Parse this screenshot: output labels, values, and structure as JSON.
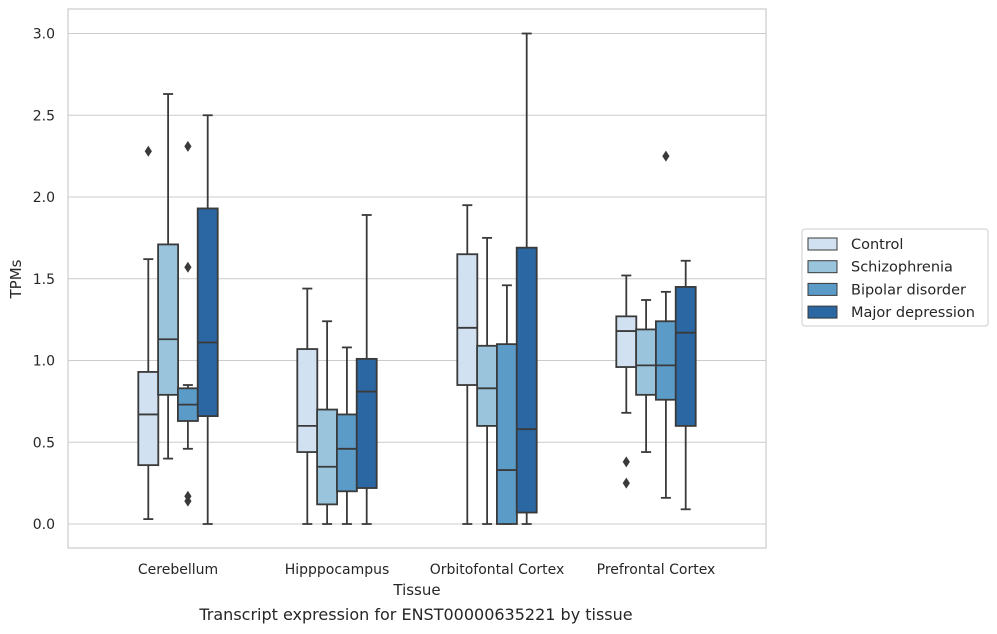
{
  "caption": "Transcript expression for ENST00000635221 by tissue",
  "chart_data": {
    "type": "box",
    "xlabel": "Tissue",
    "ylabel": "TPMs",
    "ylim": [
      -0.15,
      3.15
    ],
    "yticks": [
      0.0,
      0.5,
      1.0,
      1.5,
      2.0,
      2.5,
      3.0
    ],
    "ytick_labels": [
      "0.0",
      "0.5",
      "1.0",
      "1.5",
      "2.0",
      "2.5",
      "3.0"
    ],
    "grid": "horizontal",
    "legend_position": "right",
    "categories": [
      "Cerebellum",
      "Hipppocampus",
      "Orbitofontal Cortex",
      "Prefrontal Cortex"
    ],
    "series": [
      {
        "name": "Control",
        "color": "#d1e1f1",
        "boxes": [
          {
            "whislo": 0.03,
            "q1": 0.36,
            "med": 0.67,
            "q3": 0.93,
            "whishi": 1.62,
            "fliers": [
              2.28
            ]
          },
          {
            "whislo": 0.0,
            "q1": 0.44,
            "med": 0.6,
            "q3": 1.07,
            "whishi": 1.44,
            "fliers": []
          },
          {
            "whislo": 0.0,
            "q1": 0.85,
            "med": 1.2,
            "q3": 1.65,
            "whishi": 1.95,
            "fliers": []
          },
          {
            "whislo": 0.68,
            "q1": 0.96,
            "med": 1.18,
            "q3": 1.27,
            "whishi": 1.52,
            "fliers": [
              0.38,
              0.25
            ]
          }
        ]
      },
      {
        "name": "Schizophrenia",
        "color": "#9ac4dc",
        "boxes": [
          {
            "whislo": 0.4,
            "q1": 0.79,
            "med": 1.13,
            "q3": 1.71,
            "whishi": 2.63,
            "fliers": []
          },
          {
            "whislo": 0.0,
            "q1": 0.12,
            "med": 0.35,
            "q3": 0.7,
            "whishi": 1.24,
            "fliers": []
          },
          {
            "whislo": 0.0,
            "q1": 0.6,
            "med": 0.83,
            "q3": 1.09,
            "whishi": 1.75,
            "fliers": []
          },
          {
            "whislo": 0.44,
            "q1": 0.79,
            "med": 0.97,
            "q3": 1.19,
            "whishi": 1.37,
            "fliers": []
          }
        ]
      },
      {
        "name": "Bipolar disorder",
        "color": "#5a9bc8",
        "boxes": [
          {
            "whislo": 0.46,
            "q1": 0.63,
            "med": 0.73,
            "q3": 0.83,
            "whishi": 0.85,
            "fliers": [
              2.31,
              1.57,
              0.17,
              0.14
            ]
          },
          {
            "whislo": 0.0,
            "q1": 0.2,
            "med": 0.46,
            "q3": 0.67,
            "whishi": 1.08,
            "fliers": []
          },
          {
            "whislo": 0.0,
            "q1": 0.0,
            "med": 0.33,
            "q3": 1.1,
            "whishi": 1.46,
            "fliers": []
          },
          {
            "whislo": 0.16,
            "q1": 0.76,
            "med": 0.97,
            "q3": 1.24,
            "whishi": 1.42,
            "fliers": [
              2.25
            ]
          }
        ]
      },
      {
        "name": "Major depression",
        "color": "#2a67a3",
        "boxes": [
          {
            "whislo": 0.0,
            "q1": 0.66,
            "med": 1.11,
            "q3": 1.93,
            "whishi": 2.5,
            "fliers": []
          },
          {
            "whislo": 0.0,
            "q1": 0.22,
            "med": 0.81,
            "q3": 1.01,
            "whishi": 1.89,
            "fliers": []
          },
          {
            "whislo": 0.0,
            "q1": 0.07,
            "med": 0.58,
            "q3": 1.69,
            "whishi": 3.0,
            "fliers": []
          },
          {
            "whislo": 0.09,
            "q1": 0.6,
            "med": 1.17,
            "q3": 1.45,
            "whishi": 1.61,
            "fliers": []
          }
        ]
      }
    ]
  }
}
